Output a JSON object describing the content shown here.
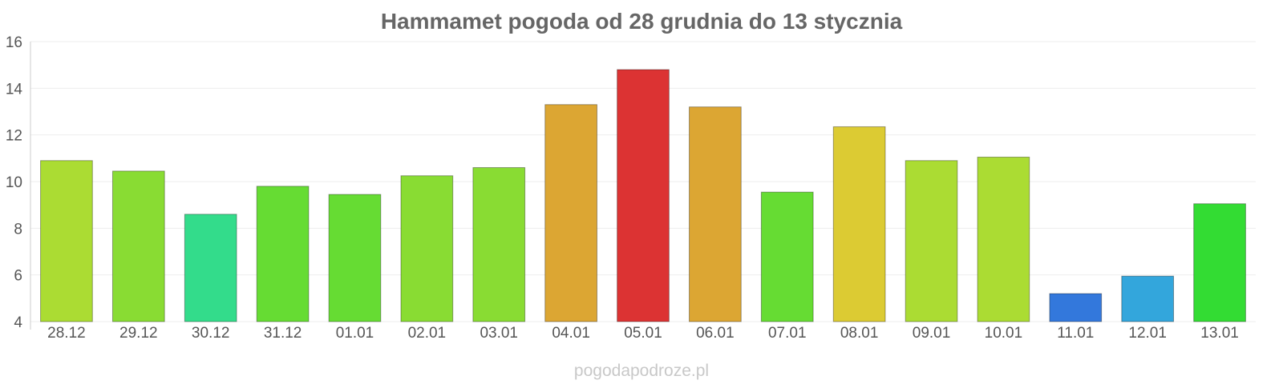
{
  "chart_data": {
    "type": "bar",
    "title": "Hammamet pogoda od 28 grudnia do 13 stycznia",
    "xlabel": "",
    "ylabel": "",
    "ylim": [
      4,
      16
    ],
    "yticks": [
      4,
      6,
      8,
      10,
      12,
      14,
      16
    ],
    "grid": true,
    "categories": [
      "28.12",
      "29.12",
      "30.12",
      "31.12",
      "01.01",
      "02.01",
      "03.01",
      "04.01",
      "05.01",
      "06.01",
      "07.01",
      "08.01",
      "09.01",
      "10.01",
      "11.01",
      "12.01",
      "13.01"
    ],
    "values": [
      10.9,
      10.45,
      8.6,
      9.8,
      9.45,
      10.25,
      10.6,
      13.3,
      14.8,
      13.2,
      9.55,
      12.35,
      10.9,
      11.05,
      5.2,
      5.95,
      9.05
    ],
    "colors": [
      "#abdc33",
      "#89dc33",
      "#33dc8b",
      "#66dc33",
      "#66dc33",
      "#89dc33",
      "#89dc33",
      "#dca633",
      "#dc3333",
      "#dca633",
      "#66dc33",
      "#dccb33",
      "#abdc33",
      "#abdc33",
      "#3378dc",
      "#33a6dc",
      "#33dc33"
    ]
  },
  "credit": "pogodapodroze.pl"
}
